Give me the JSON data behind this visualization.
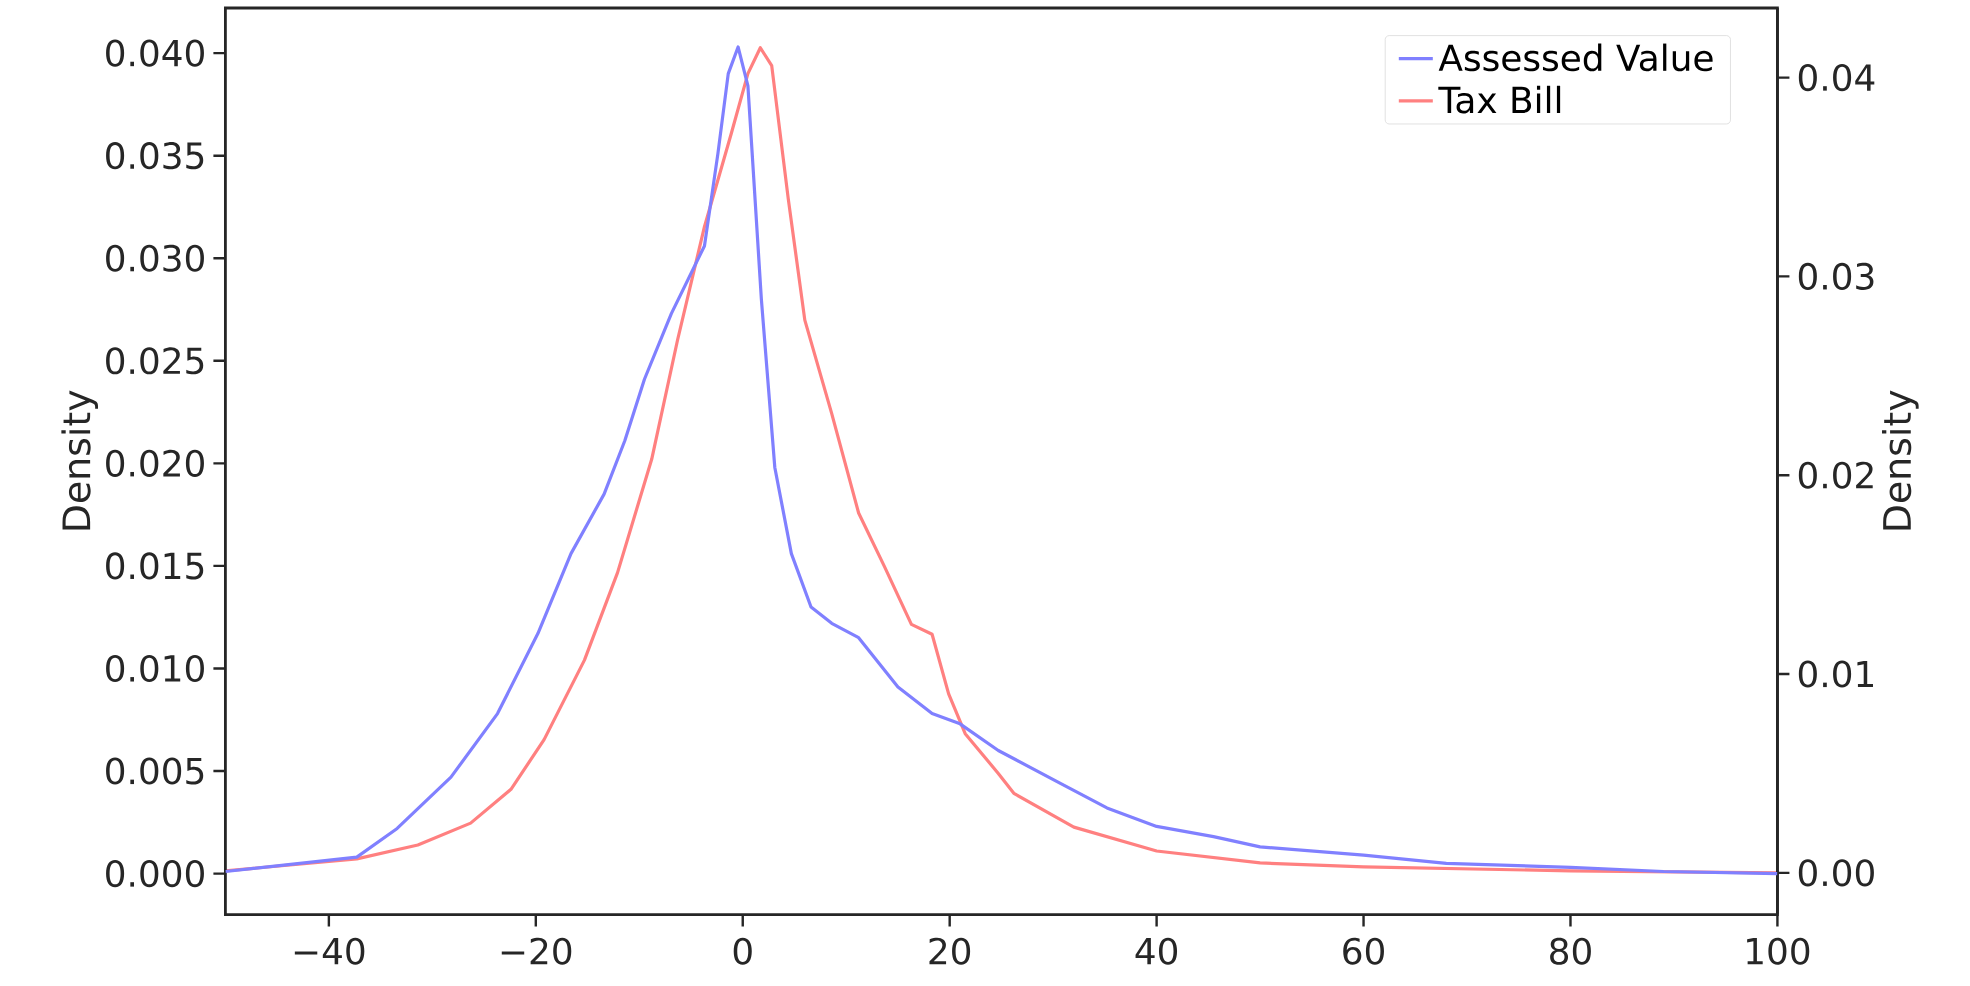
{
  "chart_data": {
    "type": "line",
    "ylabel": "Density",
    "y2label": "Density",
    "xlim": [
      -50,
      100
    ],
    "ylim": [
      -0.002,
      0.0422
    ],
    "y2lim": [
      -0.0021,
      0.0435
    ],
    "xticks": [
      {
        "value": -40,
        "label": "−40"
      },
      {
        "value": -20,
        "label": "−20"
      },
      0,
      20,
      40,
      60,
      80,
      100
    ],
    "yticks": [
      {
        "value": 0,
        "label": "0.000"
      },
      {
        "value": 0.005,
        "label": "0.005"
      },
      {
        "value": 0.01,
        "label": "0.010"
      },
      {
        "value": 0.015,
        "label": "0.015"
      },
      {
        "value": 0.02,
        "label": "0.020"
      },
      {
        "value": 0.025,
        "label": "0.025"
      },
      {
        "value": 0.03,
        "label": "0.030"
      },
      {
        "value": 0.035,
        "label": "0.035"
      },
      {
        "value": 0.04,
        "label": "0.040"
      }
    ],
    "y2ticks": [
      {
        "value": 0,
        "label": "0.00"
      },
      0.01,
      0.02,
      0.03,
      0.04
    ],
    "grid": false,
    "legend": "top right",
    "series": [
      {
        "name": "Assessed Value",
        "color": "#8080ff",
        "x": [
          -50,
          -37.3,
          -33.4,
          -28.2,
          -23.7,
          -19.8,
          -16.6,
          -13.4,
          -11.4,
          -9.5,
          -6.9,
          -3.7,
          -2.4,
          -1.4,
          -0.45,
          0.5,
          1.8,
          3.1,
          4.7,
          6.6,
          8.6,
          11.2,
          15.0,
          18.3,
          21.0,
          24.7,
          30.7,
          35.2,
          40,
          45.5,
          50,
          60,
          68,
          80,
          89,
          100
        ],
        "values": [
          0.0001,
          0.0008,
          0.0022,
          0.0047,
          0.0078,
          0.0117,
          0.0156,
          0.0185,
          0.0211,
          0.0241,
          0.0273,
          0.0306,
          0.0351,
          0.039,
          0.0403,
          0.0384,
          0.028,
          0.0198,
          0.0156,
          0.013,
          0.0122,
          0.0115,
          0.0091,
          0.0078,
          0.0073,
          0.006,
          0.0044,
          0.0032,
          0.0023,
          0.0018,
          0.0013,
          0.0009,
          0.0005,
          0.0003,
          0.0001,
          0.0
        ]
      },
      {
        "name": "Tax Bill",
        "color": "#ff8080",
        "axis": "y2",
        "x": [
          -50,
          -37.3,
          -31.4,
          -26.3,
          -22.4,
          -19.2,
          -15.3,
          -12.1,
          -8.8,
          -6.3,
          -3.7,
          -1.1,
          0.5,
          1.7,
          2.8,
          4.4,
          6.0,
          8.6,
          11.2,
          13.7,
          16.3,
          18.3,
          19.9,
          21.5,
          24.7,
          26.2,
          32,
          40,
          50,
          60,
          80,
          100
        ],
        "values": [
          0.0001,
          0.0007,
          0.0014,
          0.0025,
          0.0042,
          0.0067,
          0.0107,
          0.0151,
          0.0208,
          0.0268,
          0.0325,
          0.0372,
          0.0402,
          0.0415,
          0.0406,
          0.0339,
          0.0278,
          0.0231,
          0.0181,
          0.0154,
          0.0125,
          0.012,
          0.009,
          0.007,
          0.005,
          0.004,
          0.0023,
          0.0011,
          0.0005,
          0.0003,
          0.0001,
          0.0
        ]
      }
    ]
  }
}
